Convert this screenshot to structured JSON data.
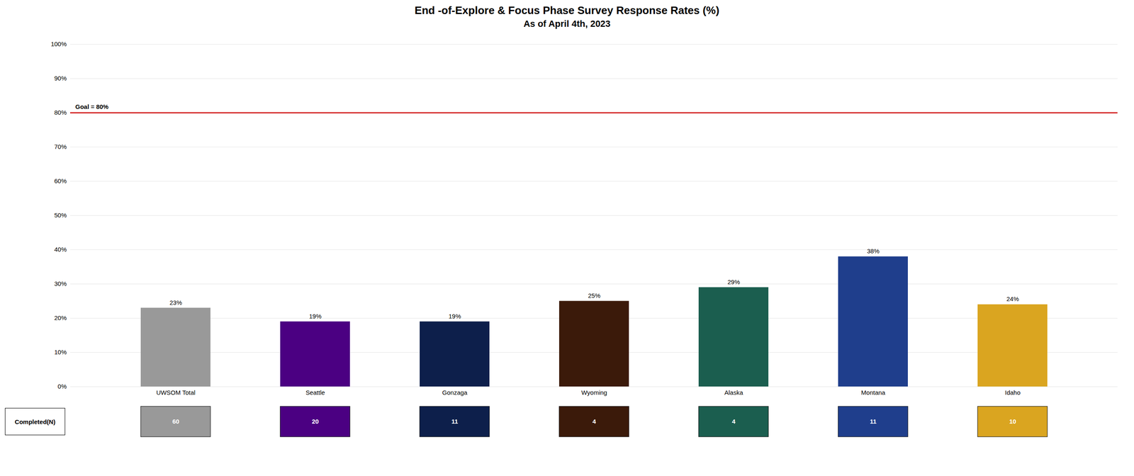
{
  "chart_data": {
    "type": "bar",
    "title": "End -of-Explore & Focus Phase Survey Response Rates (%)",
    "subtitle": "As of April 4th, 2023",
    "categories": [
      "UWSOM Total",
      "Seattle",
      "Gonzaga",
      "Wyoming",
      "Alaska",
      "Montana",
      "Idaho"
    ],
    "values": [
      23,
      19,
      19,
      25,
      29,
      38,
      24
    ],
    "value_labels": [
      "23%",
      "19%",
      "19%",
      "25%",
      "29%",
      "38%",
      "24%"
    ],
    "data_labels": true,
    "colors": [
      "#999999",
      "#4B0082",
      "#0D1F4B",
      "#3B1A0A",
      "#1B5E4F",
      "#1F3E8C",
      "#DAA520"
    ],
    "ylim": [
      0,
      100
    ],
    "yticks": [
      {
        "value": 0,
        "label": "0%"
      },
      {
        "value": 10,
        "label": "10%"
      },
      {
        "value": 20,
        "label": "20%"
      },
      {
        "value": 30,
        "label": "30%"
      },
      {
        "value": 40,
        "label": "40%"
      },
      {
        "value": 50,
        "label": "50%"
      },
      {
        "value": 60,
        "label": "60%"
      },
      {
        "value": 70,
        "label": "70%"
      },
      {
        "value": 80,
        "label": "80%"
      },
      {
        "value": 90,
        "label": "90%"
      },
      {
        "value": 100,
        "label": "100%"
      }
    ],
    "grid": true,
    "annotations": [
      {
        "type": "hline",
        "y": 80,
        "label": "Goal = 80%",
        "color": "#CC0000"
      }
    ],
    "table": {
      "header": "Completed(N)",
      "values": [
        60,
        20,
        11,
        4,
        4,
        11,
        10
      ],
      "text_color": "#FFFFFF"
    }
  }
}
